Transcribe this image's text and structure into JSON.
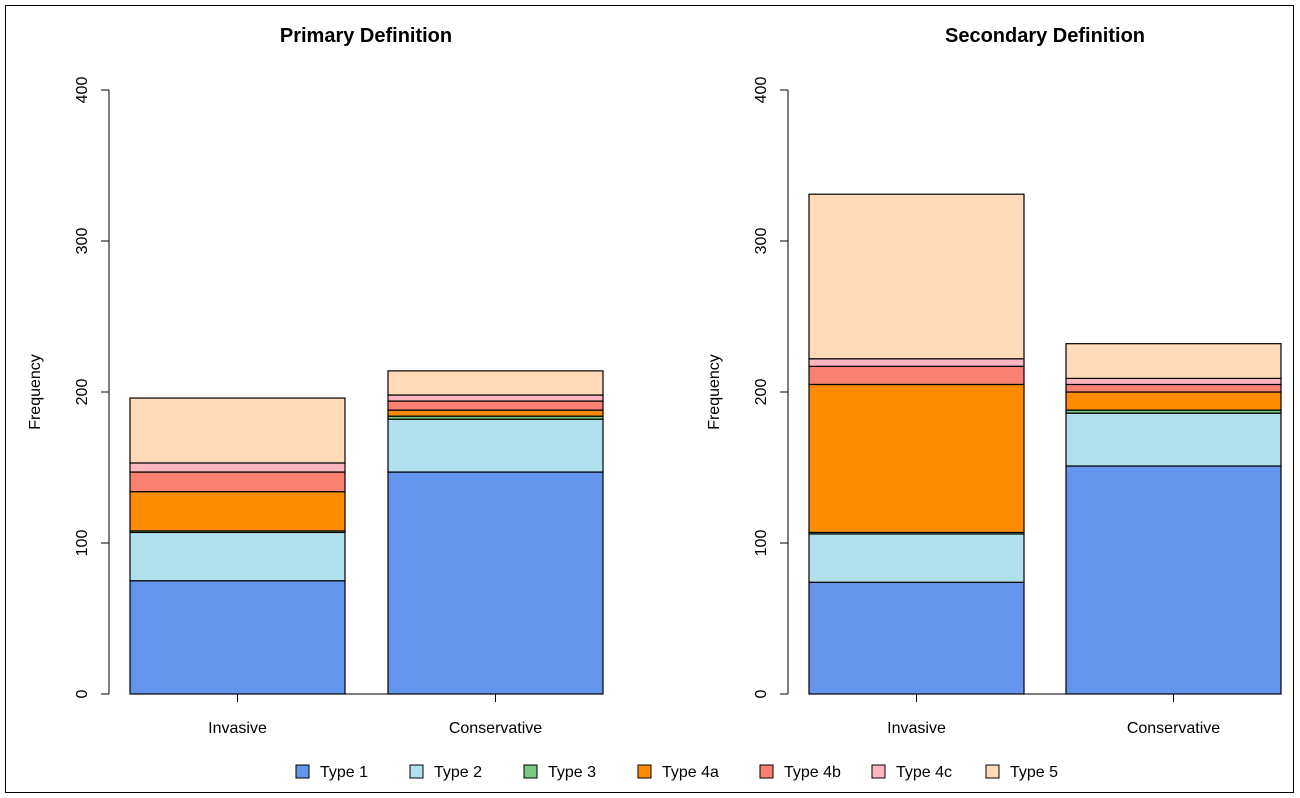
{
  "chart_data": [
    {
      "type": "bar",
      "stacked": true,
      "title": "Primary Definition",
      "xlabel": "",
      "ylabel": "Frequency",
      "ylim": [
        0,
        400
      ],
      "yticks": [
        0,
        100,
        200,
        300,
        400
      ],
      "grid": false,
      "categories": [
        "Invasive",
        "Conservative"
      ],
      "series": [
        {
          "name": "Type 1",
          "color": "#6495ED",
          "values": [
            75,
            147
          ]
        },
        {
          "name": "Type 2",
          "color": "#B0E0EB",
          "values": [
            32,
            35
          ]
        },
        {
          "name": "Type 3",
          "color": "#77C983",
          "values": [
            1,
            2
          ]
        },
        {
          "name": "Type 4a",
          "color": "#FF8C00",
          "values": [
            26,
            4
          ]
        },
        {
          "name": "Type 4b",
          "color": "#FA8072",
          "values": [
            13,
            6
          ]
        },
        {
          "name": "Type 4c",
          "color": "#FFB6C1",
          "values": [
            6,
            4
          ]
        },
        {
          "name": "Type 5",
          "color": "#FFDAB9",
          "values": [
            43,
            16
          ]
        }
      ]
    },
    {
      "type": "bar",
      "stacked": true,
      "title": "Secondary Definition",
      "xlabel": "",
      "ylabel": "Frequency",
      "ylim": [
        0,
        400
      ],
      "yticks": [
        0,
        100,
        200,
        300,
        400
      ],
      "grid": false,
      "categories": [
        "Invasive",
        "Conservative"
      ],
      "series": [
        {
          "name": "Type 1",
          "color": "#6495ED",
          "values": [
            74,
            151
          ]
        },
        {
          "name": "Type 2",
          "color": "#B0E0EB",
          "values": [
            32,
            35
          ]
        },
        {
          "name": "Type 3",
          "color": "#77C983",
          "values": [
            1,
            2
          ]
        },
        {
          "name": "Type 4a",
          "color": "#FF8C00",
          "values": [
            98,
            12
          ]
        },
        {
          "name": "Type 4b",
          "color": "#FA8072",
          "values": [
            12,
            5
          ]
        },
        {
          "name": "Type 4c",
          "color": "#FFB6C1",
          "values": [
            5,
            4
          ]
        },
        {
          "name": "Type 5",
          "color": "#FFDAB9",
          "values": [
            109,
            23
          ]
        }
      ]
    }
  ],
  "legend": {
    "position": "bottom",
    "items": [
      {
        "label": "Type 1",
        "color": "#6495ED"
      },
      {
        "label": "Type 2",
        "color": "#B0E0EB"
      },
      {
        "label": "Type 3",
        "color": "#77C983"
      },
      {
        "label": "Type 4a",
        "color": "#FF8C00"
      },
      {
        "label": "Type 4b",
        "color": "#FA8072"
      },
      {
        "label": "Type 4c",
        "color": "#FFB6C1"
      },
      {
        "label": "Type 5",
        "color": "#FFDAB9"
      }
    ]
  }
}
